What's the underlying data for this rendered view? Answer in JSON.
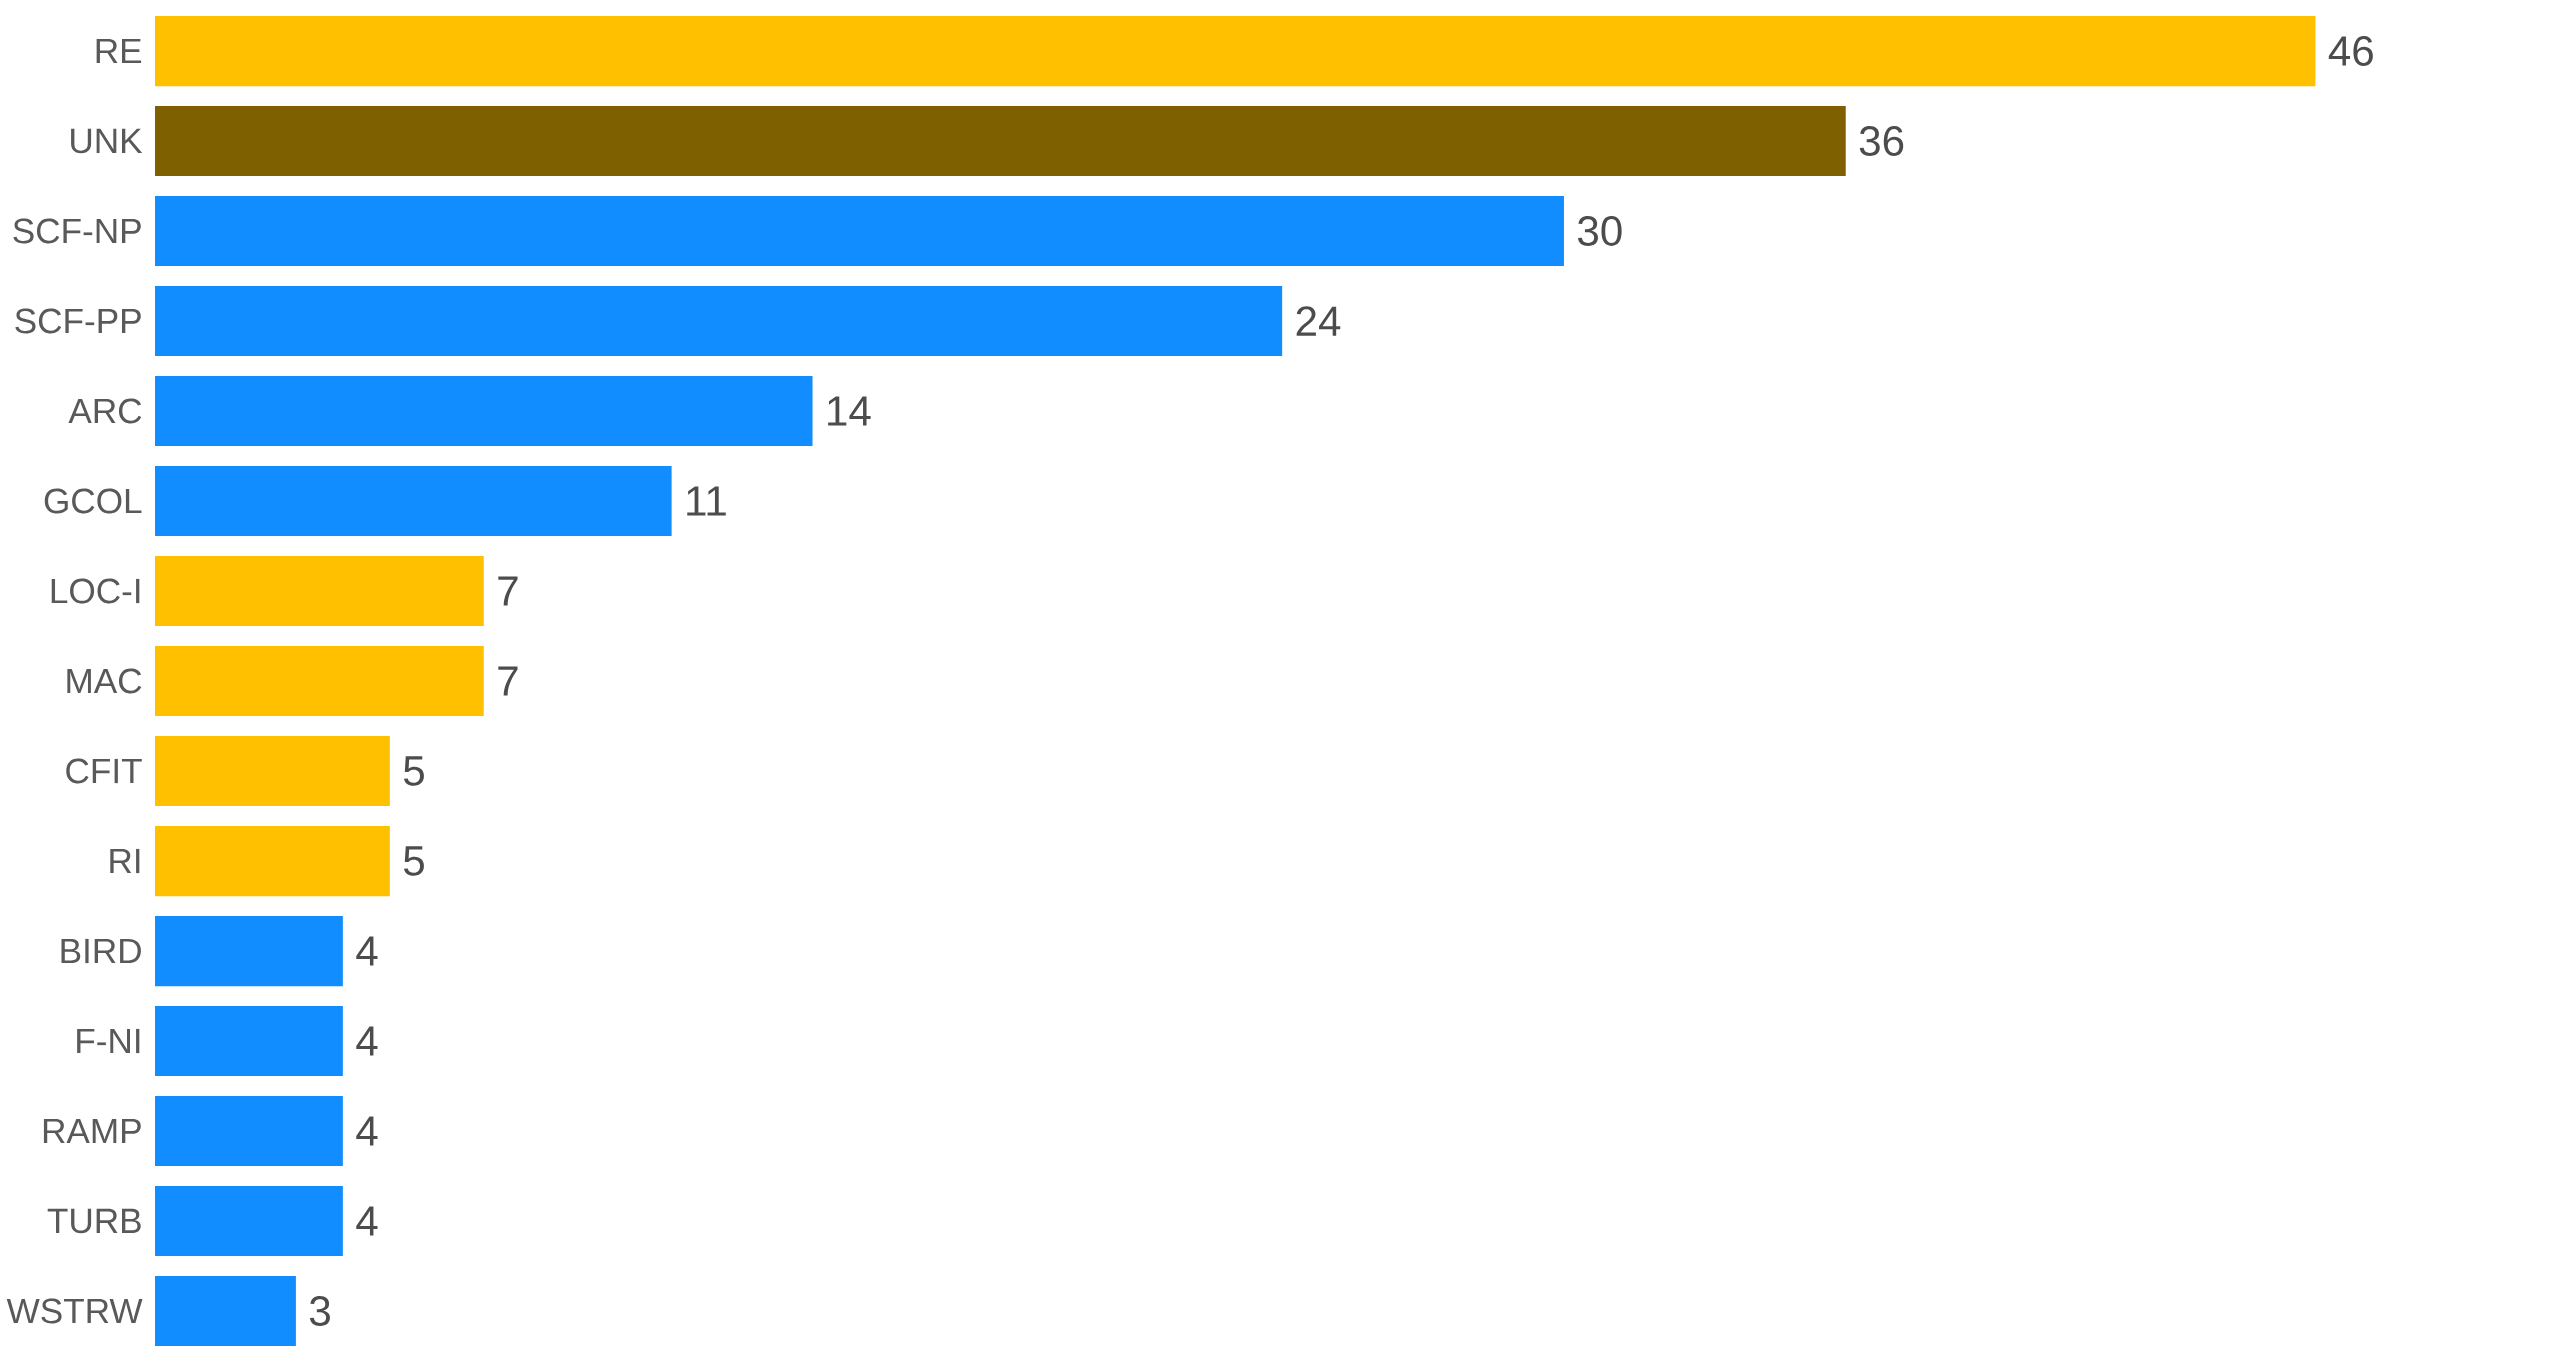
{
  "chart_data": {
    "type": "bar",
    "orientation": "horizontal",
    "data_labels": true,
    "categories": [
      "RE",
      "UNK",
      "SCF-NP",
      "SCF-PP",
      "ARC",
      "GCOL",
      "LOC-I",
      "MAC",
      "CFIT",
      "RI",
      "BIRD",
      "F-NI",
      "RAMP",
      "TURB",
      "WSTRW"
    ],
    "values": [
      46,
      36,
      30,
      24,
      14,
      11,
      7,
      7,
      5,
      5,
      4,
      4,
      4,
      4,
      3
    ],
    "colors": [
      "#ffc000",
      "#7f6000",
      "#118dff",
      "#118dff",
      "#118dff",
      "#118dff",
      "#ffc000",
      "#ffc000",
      "#ffc000",
      "#ffc000",
      "#118dff",
      "#118dff",
      "#118dff",
      "#118dff",
      "#118dff"
    ]
  }
}
